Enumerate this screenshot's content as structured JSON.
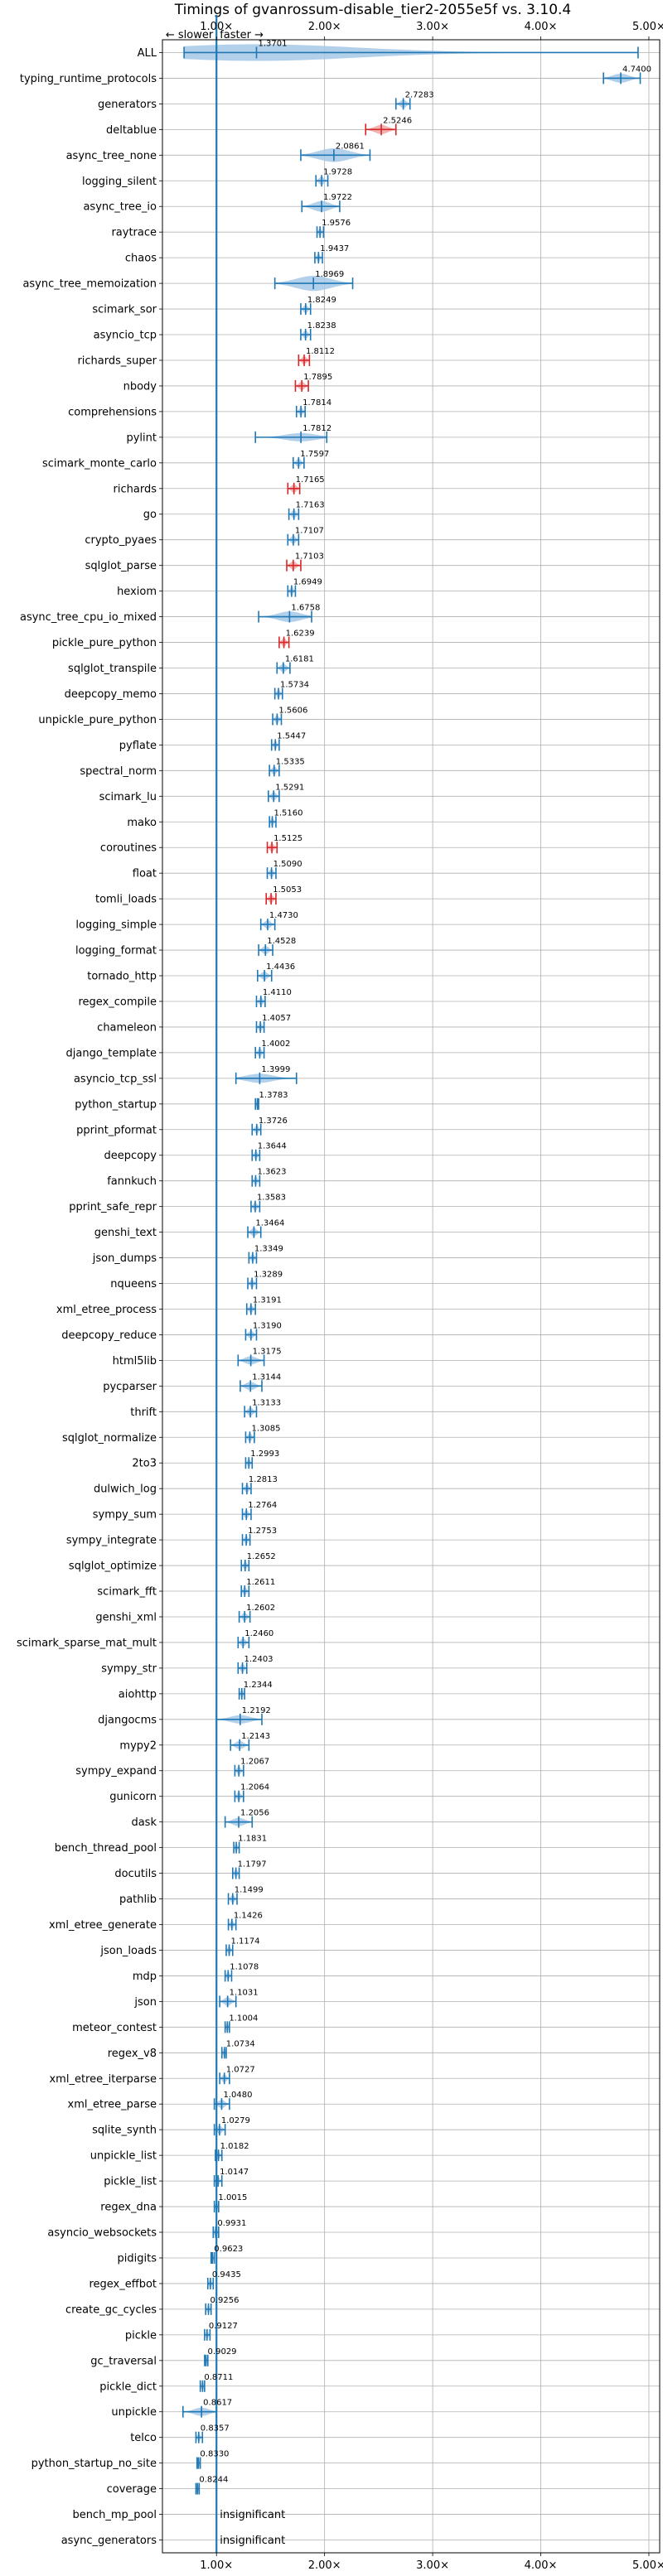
{
  "chart_data": {
    "type": "violin",
    "title": "Timings of gvanrossum-disable_tier2-2055e5f vs. 3.10.4",
    "xlim": [
      0.5,
      5.1
    ],
    "xticks": [
      1,
      2,
      3,
      4,
      5
    ],
    "xtick_labels": [
      "1.00×",
      "2.00×",
      "3.00×",
      "4.00×",
      "5.00×"
    ],
    "grid": true,
    "reference_line": 1.0,
    "annotation": {
      "slower": "← slower",
      "faster": "faster →"
    },
    "colors": {
      "faster": "#1f77b4",
      "slower": "#d62728",
      "fill_faster": "#a6c8e6",
      "fill_slower": "#f1a6a7"
    },
    "insignificant_label": "insignificant",
    "benchmarks": [
      {
        "name": "ALL",
        "value": 1.3701,
        "label": "1.3701",
        "min": 0.7,
        "max": 4.9,
        "spread": 0.22
      },
      {
        "name": "typing_runtime_protocols",
        "value": 4.74,
        "label": "4.7400",
        "min": 4.58,
        "max": 4.92,
        "spread": 0.12
      },
      {
        "name": "generators",
        "value": 2.7283,
        "label": "2.7283",
        "min": 2.66,
        "max": 2.79,
        "spread": 0.06
      },
      {
        "name": "deltablue",
        "value": 2.5246,
        "label": "2.5246",
        "min": 2.38,
        "max": 2.66,
        "spread": 0.12,
        "slower": true
      },
      {
        "name": "async_tree_none",
        "value": 2.0861,
        "label": "2.0861",
        "min": 1.78,
        "max": 2.42,
        "spread": 0.18
      },
      {
        "name": "logging_silent",
        "value": 1.9728,
        "label": "1.9728",
        "min": 1.92,
        "max": 2.03,
        "spread": 0.06
      },
      {
        "name": "async_tree_io",
        "value": 1.9722,
        "label": "1.9722",
        "min": 1.79,
        "max": 2.14,
        "spread": 0.14
      },
      {
        "name": "raytrace",
        "value": 1.9576,
        "label": "1.9576",
        "min": 1.93,
        "max": 1.99,
        "spread": 0.05
      },
      {
        "name": "chaos",
        "value": 1.9437,
        "label": "1.9437",
        "min": 1.91,
        "max": 1.98,
        "spread": 0.05
      },
      {
        "name": "async_tree_memoization",
        "value": 1.8969,
        "label": "1.8969",
        "min": 1.54,
        "max": 2.26,
        "spread": 0.2
      },
      {
        "name": "scimark_sor",
        "value": 1.8249,
        "label": "1.8249",
        "min": 1.78,
        "max": 1.87,
        "spread": 0.06
      },
      {
        "name": "asyncio_tcp",
        "value": 1.8238,
        "label": "1.8238",
        "min": 1.78,
        "max": 1.87,
        "spread": 0.06
      },
      {
        "name": "richards_super",
        "value": 1.8112,
        "label": "1.8112",
        "min": 1.76,
        "max": 1.86,
        "spread": 0.06,
        "slower": true
      },
      {
        "name": "nbody",
        "value": 1.7895,
        "label": "1.7895",
        "min": 1.73,
        "max": 1.85,
        "spread": 0.06,
        "slower": true
      },
      {
        "name": "comprehensions",
        "value": 1.7814,
        "label": "1.7814",
        "min": 1.74,
        "max": 1.82,
        "spread": 0.05
      },
      {
        "name": "pylint",
        "value": 1.7812,
        "label": "1.7812",
        "min": 1.36,
        "max": 2.02,
        "spread": 0.09
      },
      {
        "name": "scimark_monte_carlo",
        "value": 1.7597,
        "label": "1.7597",
        "min": 1.71,
        "max": 1.81,
        "spread": 0.06
      },
      {
        "name": "richards",
        "value": 1.7165,
        "label": "1.7165",
        "min": 1.66,
        "max": 1.77,
        "spread": 0.06,
        "slower": true
      },
      {
        "name": "go",
        "value": 1.7163,
        "label": "1.7163",
        "min": 1.67,
        "max": 1.76,
        "spread": 0.06
      },
      {
        "name": "crypto_pyaes",
        "value": 1.7107,
        "label": "1.7107",
        "min": 1.66,
        "max": 1.76,
        "spread": 0.06
      },
      {
        "name": "sqlglot_parse",
        "value": 1.7103,
        "label": "1.7103",
        "min": 1.65,
        "max": 1.78,
        "spread": 0.06,
        "slower": true
      },
      {
        "name": "hexiom",
        "value": 1.6949,
        "label": "1.6949",
        "min": 1.66,
        "max": 1.73,
        "spread": 0.05
      },
      {
        "name": "async_tree_cpu_io_mixed",
        "value": 1.6758,
        "label": "1.6758",
        "min": 1.39,
        "max": 1.88,
        "spread": 0.14
      },
      {
        "name": "pickle_pure_python",
        "value": 1.6239,
        "label": "1.6239",
        "min": 1.58,
        "max": 1.67,
        "spread": 0.06,
        "slower": true
      },
      {
        "name": "sqlglot_transpile",
        "value": 1.6181,
        "label": "1.6181",
        "min": 1.56,
        "max": 1.68,
        "spread": 0.06
      },
      {
        "name": "deepcopy_memo",
        "value": 1.5734,
        "label": "1.5734",
        "min": 1.54,
        "max": 1.61,
        "spread": 0.05
      },
      {
        "name": "unpickle_pure_python",
        "value": 1.5606,
        "label": "1.5606",
        "min": 1.52,
        "max": 1.6,
        "spread": 0.05
      },
      {
        "name": "pyflate",
        "value": 1.5447,
        "label": "1.5447",
        "min": 1.51,
        "max": 1.58,
        "spread": 0.05
      },
      {
        "name": "spectral_norm",
        "value": 1.5335,
        "label": "1.5335",
        "min": 1.49,
        "max": 1.58,
        "spread": 0.05
      },
      {
        "name": "scimark_lu",
        "value": 1.5291,
        "label": "1.5291",
        "min": 1.48,
        "max": 1.58,
        "spread": 0.06
      },
      {
        "name": "mako",
        "value": 1.516,
        "label": "1.5160",
        "min": 1.49,
        "max": 1.55,
        "spread": 0.04
      },
      {
        "name": "coroutines",
        "value": 1.5125,
        "label": "1.5125",
        "min": 1.47,
        "max": 1.56,
        "spread": 0.06,
        "slower": true
      },
      {
        "name": "float",
        "value": 1.509,
        "label": "1.5090",
        "min": 1.47,
        "max": 1.55,
        "spread": 0.05
      },
      {
        "name": "tomli_loads",
        "value": 1.5053,
        "label": "1.5053",
        "min": 1.46,
        "max": 1.55,
        "spread": 0.06,
        "slower": true
      },
      {
        "name": "logging_simple",
        "value": 1.473,
        "label": "1.4730",
        "min": 1.41,
        "max": 1.54,
        "spread": 0.06
      },
      {
        "name": "logging_format",
        "value": 1.4528,
        "label": "1.4528",
        "min": 1.39,
        "max": 1.52,
        "spread": 0.06
      },
      {
        "name": "tornado_http",
        "value": 1.4436,
        "label": "1.4436",
        "min": 1.38,
        "max": 1.51,
        "spread": 0.06
      },
      {
        "name": "regex_compile",
        "value": 1.411,
        "label": "1.4110",
        "min": 1.37,
        "max": 1.45,
        "spread": 0.05
      },
      {
        "name": "chameleon",
        "value": 1.4057,
        "label": "1.4057",
        "min": 1.37,
        "max": 1.44,
        "spread": 0.05
      },
      {
        "name": "django_template",
        "value": 1.4002,
        "label": "1.4002",
        "min": 1.36,
        "max": 1.44,
        "spread": 0.05
      },
      {
        "name": "asyncio_tcp_ssl",
        "value": 1.3999,
        "label": "1.3999",
        "min": 1.18,
        "max": 1.74,
        "spread": 0.12
      },
      {
        "name": "python_startup",
        "value": 1.3783,
        "label": "1.3783",
        "min": 1.36,
        "max": 1.39,
        "spread": 0.03
      },
      {
        "name": "pprint_pformat",
        "value": 1.3726,
        "label": "1.3726",
        "min": 1.33,
        "max": 1.41,
        "spread": 0.05
      },
      {
        "name": "deepcopy",
        "value": 1.3644,
        "label": "1.3644",
        "min": 1.33,
        "max": 1.4,
        "spread": 0.05
      },
      {
        "name": "fannkuch",
        "value": 1.3623,
        "label": "1.3623",
        "min": 1.33,
        "max": 1.4,
        "spread": 0.05
      },
      {
        "name": "pprint_safe_repr",
        "value": 1.3583,
        "label": "1.3583",
        "min": 1.32,
        "max": 1.4,
        "spread": 0.05
      },
      {
        "name": "genshi_text",
        "value": 1.3464,
        "label": "1.3464",
        "min": 1.29,
        "max": 1.41,
        "spread": 0.06
      },
      {
        "name": "json_dumps",
        "value": 1.3349,
        "label": "1.3349",
        "min": 1.3,
        "max": 1.37,
        "spread": 0.05
      },
      {
        "name": "nqueens",
        "value": 1.3289,
        "label": "1.3289",
        "min": 1.29,
        "max": 1.37,
        "spread": 0.05
      },
      {
        "name": "xml_etree_process",
        "value": 1.3191,
        "label": "1.3191",
        "min": 1.28,
        "max": 1.36,
        "spread": 0.05
      },
      {
        "name": "deepcopy_reduce",
        "value": 1.319,
        "label": "1.3190",
        "min": 1.27,
        "max": 1.37,
        "spread": 0.05
      },
      {
        "name": "html5lib",
        "value": 1.3175,
        "label": "1.3175",
        "min": 1.2,
        "max": 1.44,
        "spread": 0.1
      },
      {
        "name": "pycparser",
        "value": 1.3144,
        "label": "1.3144",
        "min": 1.22,
        "max": 1.42,
        "spread": 0.07
      },
      {
        "name": "thrift",
        "value": 1.3133,
        "label": "1.3133",
        "min": 1.26,
        "max": 1.37,
        "spread": 0.06
      },
      {
        "name": "sqlglot_normalize",
        "value": 1.3085,
        "label": "1.3085",
        "min": 1.27,
        "max": 1.35,
        "spread": 0.05
      },
      {
        "name": "2to3",
        "value": 1.2993,
        "label": "1.2993",
        "min": 1.27,
        "max": 1.33,
        "spread": 0.04
      },
      {
        "name": "dulwich_log",
        "value": 1.2813,
        "label": "1.2813",
        "min": 1.24,
        "max": 1.32,
        "spread": 0.05
      },
      {
        "name": "sympy_sum",
        "value": 1.2764,
        "label": "1.2764",
        "min": 1.24,
        "max": 1.32,
        "spread": 0.05
      },
      {
        "name": "sympy_integrate",
        "value": 1.2753,
        "label": "1.2753",
        "min": 1.24,
        "max": 1.31,
        "spread": 0.05
      },
      {
        "name": "sqlglot_optimize",
        "value": 1.2652,
        "label": "1.2652",
        "min": 1.23,
        "max": 1.3,
        "spread": 0.05
      },
      {
        "name": "scimark_fft",
        "value": 1.2611,
        "label": "1.2611",
        "min": 1.23,
        "max": 1.3,
        "spread": 0.05
      },
      {
        "name": "genshi_xml",
        "value": 1.2602,
        "label": "1.2602",
        "min": 1.21,
        "max": 1.31,
        "spread": 0.06
      },
      {
        "name": "scimark_sparse_mat_mult",
        "value": 1.246,
        "label": "1.2460",
        "min": 1.2,
        "max": 1.3,
        "spread": 0.05
      },
      {
        "name": "sympy_str",
        "value": 1.2403,
        "label": "1.2403",
        "min": 1.2,
        "max": 1.28,
        "spread": 0.05
      },
      {
        "name": "aiohttp",
        "value": 1.2344,
        "label": "1.2344",
        "min": 1.21,
        "max": 1.26,
        "spread": 0.04
      },
      {
        "name": "djangocms",
        "value": 1.2192,
        "label": "1.2192",
        "min": 1.0,
        "max": 1.42,
        "spread": 0.1
      },
      {
        "name": "mypy2",
        "value": 1.2143,
        "label": "1.2143",
        "min": 1.13,
        "max": 1.3,
        "spread": 0.07
      },
      {
        "name": "sympy_expand",
        "value": 1.2067,
        "label": "1.2067",
        "min": 1.17,
        "max": 1.25,
        "spread": 0.05
      },
      {
        "name": "gunicorn",
        "value": 1.2064,
        "label": "1.2064",
        "min": 1.17,
        "max": 1.25,
        "spread": 0.05
      },
      {
        "name": "dask",
        "value": 1.2056,
        "label": "1.2056",
        "min": 1.08,
        "max": 1.33,
        "spread": 0.1
      },
      {
        "name": "bench_thread_pool",
        "value": 1.1831,
        "label": "1.1831",
        "min": 1.16,
        "max": 1.21,
        "spread": 0.03
      },
      {
        "name": "docutils",
        "value": 1.1797,
        "label": "1.1797",
        "min": 1.15,
        "max": 1.21,
        "spread": 0.05
      },
      {
        "name": "pathlib",
        "value": 1.1499,
        "label": "1.1499",
        "min": 1.11,
        "max": 1.19,
        "spread": 0.05
      },
      {
        "name": "xml_etree_generate",
        "value": 1.1426,
        "label": "1.1426",
        "min": 1.11,
        "max": 1.18,
        "spread": 0.05
      },
      {
        "name": "json_loads",
        "value": 1.1174,
        "label": "1.1174",
        "min": 1.09,
        "max": 1.15,
        "spread": 0.05
      },
      {
        "name": "mdp",
        "value": 1.1078,
        "label": "1.1078",
        "min": 1.08,
        "max": 1.14,
        "spread": 0.05
      },
      {
        "name": "json",
        "value": 1.1031,
        "label": "1.1031",
        "min": 1.03,
        "max": 1.18,
        "spread": 0.06
      },
      {
        "name": "meteor_contest",
        "value": 1.1004,
        "label": "1.1004",
        "min": 1.08,
        "max": 1.12,
        "spread": 0.04
      },
      {
        "name": "regex_v8",
        "value": 1.0734,
        "label": "1.0734",
        "min": 1.05,
        "max": 1.09,
        "spread": 0.03
      },
      {
        "name": "xml_etree_iterparse",
        "value": 1.0727,
        "label": "1.0727",
        "min": 1.03,
        "max": 1.12,
        "spread": 0.05
      },
      {
        "name": "xml_etree_parse",
        "value": 1.048,
        "label": "1.0480",
        "min": 0.98,
        "max": 1.12,
        "spread": 0.06
      },
      {
        "name": "sqlite_synth",
        "value": 1.0279,
        "label": "1.0279",
        "min": 0.98,
        "max": 1.08,
        "spread": 0.06
      },
      {
        "name": "unpickle_list",
        "value": 1.0182,
        "label": "1.0182",
        "min": 0.99,
        "max": 1.05,
        "spread": 0.04
      },
      {
        "name": "pickle_list",
        "value": 1.0147,
        "label": "1.0147",
        "min": 0.98,
        "max": 1.05,
        "spread": 0.04
      },
      {
        "name": "regex_dna",
        "value": 1.0015,
        "label": "1.0015",
        "min": 0.98,
        "max": 1.02,
        "spread": 0.03
      },
      {
        "name": "asyncio_websockets",
        "value": 0.9931,
        "label": "0.9931",
        "min": 0.97,
        "max": 1.02,
        "spread": 0.03
      },
      {
        "name": "pidigits",
        "value": 0.9623,
        "label": "0.9623",
        "min": 0.95,
        "max": 0.98,
        "spread": 0.02
      },
      {
        "name": "regex_effbot",
        "value": 0.9435,
        "label": "0.9435",
        "min": 0.92,
        "max": 0.97,
        "spread": 0.03
      },
      {
        "name": "create_gc_cycles",
        "value": 0.9256,
        "label": "0.9256",
        "min": 0.9,
        "max": 0.95,
        "spread": 0.03
      },
      {
        "name": "pickle",
        "value": 0.9127,
        "label": "0.9127",
        "min": 0.89,
        "max": 0.94,
        "spread": 0.03
      },
      {
        "name": "gc_traversal",
        "value": 0.9029,
        "label": "0.9029",
        "min": 0.89,
        "max": 0.92,
        "spread": 0.02
      },
      {
        "name": "pickle_dict",
        "value": 0.8711,
        "label": "0.8711",
        "min": 0.85,
        "max": 0.89,
        "spread": 0.03
      },
      {
        "name": "unpickle",
        "value": 0.8617,
        "label": "0.8617",
        "min": 0.69,
        "max": 1.0,
        "spread": 0.1
      },
      {
        "name": "telco",
        "value": 0.8357,
        "label": "0.8357",
        "min": 0.81,
        "max": 0.87,
        "spread": 0.04
      },
      {
        "name": "python_startup_no_site",
        "value": 0.833,
        "label": "0.8330",
        "min": 0.82,
        "max": 0.85,
        "spread": 0.02
      },
      {
        "name": "coverage",
        "value": 0.8244,
        "label": "0.8244",
        "min": 0.81,
        "max": 0.84,
        "spread": 0.03
      },
      {
        "name": "bench_mp_pool",
        "insignificant": true
      },
      {
        "name": "async_generators",
        "insignificant": true
      }
    ]
  }
}
